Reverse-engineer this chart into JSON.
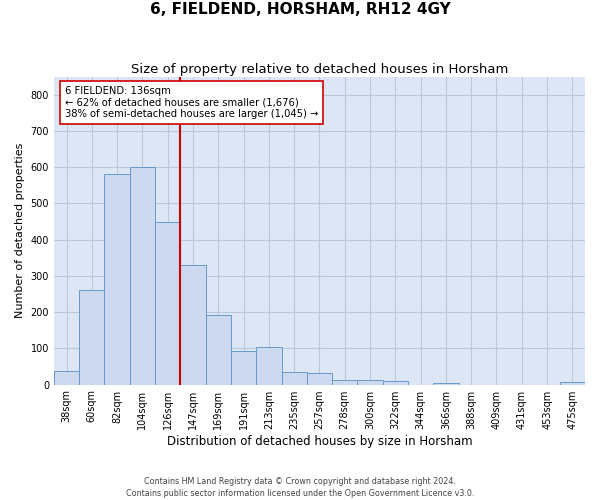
{
  "title": "6, FIELDEND, HORSHAM, RH12 4GY",
  "subtitle": "Size of property relative to detached houses in Horsham",
  "xlabel": "Distribution of detached houses by size in Horsham",
  "ylabel": "Number of detached properties",
  "footer_line1": "Contains HM Land Registry data © Crown copyright and database right 2024.",
  "footer_line2": "Contains public sector information licensed under the Open Government Licence v3.0.",
  "categories": [
    "38sqm",
    "60sqm",
    "82sqm",
    "104sqm",
    "126sqm",
    "147sqm",
    "169sqm",
    "191sqm",
    "213sqm",
    "235sqm",
    "257sqm",
    "278sqm",
    "300sqm",
    "322sqm",
    "344sqm",
    "366sqm",
    "388sqm",
    "409sqm",
    "431sqm",
    "453sqm",
    "475sqm"
  ],
  "values": [
    38,
    262,
    580,
    600,
    450,
    330,
    193,
    93,
    103,
    35,
    33,
    14,
    14,
    10,
    0,
    5,
    0,
    0,
    0,
    0,
    8
  ],
  "bar_color": "#ccd9ee",
  "bar_edge_color": "#6699cc",
  "vline_color": "#cc0000",
  "annotation_text": "6 FIELDEND: 136sqm\n← 62% of detached houses are smaller (1,676)\n38% of semi-detached houses are larger (1,045) →",
  "annotation_box_color": "#ffffff",
  "annotation_box_edge": "#cc0000",
  "ylim": [
    0,
    850
  ],
  "yticks": [
    0,
    100,
    200,
    300,
    400,
    500,
    600,
    700,
    800
  ],
  "grid_color": "#b8c8de",
  "background_color": "#dce6f5",
  "title_fontsize": 11,
  "subtitle_fontsize": 9.5,
  "tick_fontsize": 7,
  "ylabel_fontsize": 8,
  "xlabel_fontsize": 8.5
}
